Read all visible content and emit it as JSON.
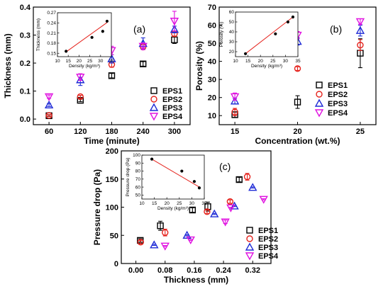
{
  "colors": {
    "EPS1": "#000000",
    "EPS2": "#e5221c",
    "EPS3": "#1f2bd6",
    "EPS4": "#e012e0",
    "fit": "#e5221c"
  },
  "series_meta": [
    {
      "name": "EPS1",
      "marker": "square"
    },
    {
      "name": "EPS2",
      "marker": "circle"
    },
    {
      "name": "EPS3",
      "marker": "triangle-up"
    },
    {
      "name": "EPS4",
      "marker": "triangle-down"
    }
  ],
  "chart_data": [
    {
      "panel_label": "(a)",
      "type": "scatter",
      "xlabel": "Time (minute)",
      "ylabel": "Thickness (mm)",
      "x_categories": [
        "60",
        "120",
        "180",
        "240",
        "300"
      ],
      "xlim": [
        30,
        330
      ],
      "ylim": [
        -0.02,
        0.4
      ],
      "yticks": [
        0.0,
        0.1,
        0.2,
        0.3,
        0.4
      ],
      "ytick_labels": [
        "0.0",
        "0.1",
        "0.2",
        "0.3",
        "0.4"
      ],
      "legend": [
        "EPS1",
        "EPS2",
        "EPS3",
        "EPS4"
      ],
      "legend_position": "bottom-right",
      "series": [
        {
          "name": "EPS1",
          "x": [
            60,
            120,
            180,
            240,
            300
          ],
          "y": [
            0.012,
            0.067,
            0.155,
            0.197,
            0.283
          ],
          "err": [
            0.003,
            0.005,
            0.008,
            0.008,
            0.013
          ]
        },
        {
          "name": "EPS2",
          "x": [
            60,
            120,
            180,
            240,
            300
          ],
          "y": [
            0.013,
            0.08,
            0.195,
            0.258,
            0.305
          ],
          "err": [
            0.003,
            0.005,
            0.01,
            0.01,
            0.01
          ]
        },
        {
          "name": "EPS3",
          "x": [
            60,
            120,
            180,
            240,
            300
          ],
          "y": [
            0.05,
            0.14,
            0.215,
            0.27,
            0.32
          ],
          "err": [
            0.005,
            0.02,
            0.015,
            0.02,
            0.012
          ]
        },
        {
          "name": "EPS4",
          "x": [
            60,
            120,
            180,
            240,
            300
          ],
          "y": [
            0.08,
            0.15,
            0.245,
            0.26,
            0.35
          ],
          "err": [
            0.006,
            0.012,
            0.015,
            0.012,
            0.035
          ]
        }
      ],
      "inset": {
        "xlabel": "Density (kg/m³)",
        "ylabel": "Thickness (mm)",
        "xlim": [
          10,
          35
        ],
        "ylim": [
          0.14,
          0.27
        ],
        "xticks": [
          10,
          15,
          20,
          25,
          30,
          35
        ],
        "yticks": [
          0.15,
          0.18,
          0.21,
          0.24,
          0.27
        ],
        "ytick_labels": [
          "0.15",
          "0.18",
          "0.21",
          "0.24",
          "0.27"
        ],
        "points": {
          "x": [
            14,
            26,
            31,
            33
          ],
          "y": [
            0.156,
            0.197,
            0.215,
            0.245
          ]
        },
        "fit": {
          "x": [
            14,
            33
          ],
          "y": [
            0.154,
            0.241
          ]
        }
      }
    },
    {
      "panel_label": "(b)",
      "type": "scatter",
      "xlabel": "Concentration (wt.%)",
      "ylabel": "Porosity (%)",
      "x_categories": [
        "15",
        "20",
        "25"
      ],
      "xlim": [
        13.75,
        26.25
      ],
      "ylim": [
        5,
        70
      ],
      "yticks": [
        10,
        20,
        30,
        40,
        50,
        60,
        70
      ],
      "ytick_labels": [
        "10",
        "20",
        "30",
        "40",
        "50",
        "60",
        "70"
      ],
      "legend": [
        "EPS1",
        "EPS2",
        "EPS3",
        "EPS4"
      ],
      "legend_position": "bottom-right",
      "series": [
        {
          "name": "EPS1",
          "x": [
            15,
            20,
            25
          ],
          "y": [
            10.5,
            17.5,
            44.5
          ],
          "err": [
            1.5,
            3.5,
            8
          ]
        },
        {
          "name": "EPS2",
          "x": [
            15,
            20,
            25
          ],
          "y": [
            12,
            36,
            49
          ],
          "err": [
            2,
            1,
            3
          ]
        },
        {
          "name": "EPS3",
          "x": [
            15,
            20,
            25
          ],
          "y": [
            18,
            51,
            57
          ],
          "err": [
            1.5,
            2,
            3
          ]
        },
        {
          "name": "EPS4",
          "x": [
            15,
            20,
            25
          ],
          "y": [
            20.5,
            54.5,
            62
          ],
          "err": [
            2,
            2,
            1.5
          ]
        }
      ],
      "inset": {
        "xlabel": "Density (kg/m³)",
        "ylabel": "Porosity (%)",
        "xlim": [
          10,
          35
        ],
        "ylim": [
          15,
          60
        ],
        "xticks": [
          10,
          15,
          20,
          25,
          30,
          35
        ],
        "yticks": [
          20,
          30,
          40,
          50,
          60
        ],
        "ytick_labels": [
          "20",
          "30",
          "40",
          "50",
          "60"
        ],
        "points": {
          "x": [
            14,
            26,
            31,
            33
          ],
          "y": [
            18,
            38,
            50,
            55
          ]
        },
        "fit": {
          "x": [
            14,
            33
          ],
          "y": [
            18,
            55
          ]
        }
      }
    },
    {
      "panel_label": "(c)",
      "type": "scatter",
      "xlabel": "Thickness (mm)",
      "ylabel": "Pressure drop (Pa)",
      "xlim": [
        -0.04,
        0.37
      ],
      "xticks": [
        0.0,
        0.08,
        0.16,
        0.24,
        0.32
      ],
      "xtick_labels": [
        "0.00",
        "0.08",
        "0.16",
        "0.24",
        "0.32"
      ],
      "ylim": [
        0,
        200
      ],
      "yticks": [
        0,
        50,
        100,
        150,
        200
      ],
      "ytick_labels": [
        "0",
        "50",
        "100",
        "150",
        "200"
      ],
      "legend": [
        "EPS1",
        "EPS2",
        "EPS3",
        "EPS4"
      ],
      "legend_position": "bottom-right",
      "series": [
        {
          "name": "EPS1",
          "x": [
            0.012,
            0.067,
            0.155,
            0.197,
            0.283
          ],
          "y": [
            41,
            67,
            95,
            101,
            149
          ],
          "err": [
            3,
            8,
            4,
            8,
            4
          ]
        },
        {
          "name": "EPS2",
          "x": [
            0.013,
            0.08,
            0.195,
            0.258,
            0.305
          ],
          "y": [
            38,
            55,
            92,
            110,
            154
          ],
          "err": [
            3,
            6,
            3,
            3,
            6
          ]
        },
        {
          "name": "EPS3",
          "x": [
            0.05,
            0.14,
            0.215,
            0.27,
            0.32
          ],
          "y": [
            33,
            50,
            88,
            102,
            135
          ],
          "err": [
            1,
            1,
            1,
            1,
            1
          ]
        },
        {
          "name": "EPS4",
          "x": [
            0.08,
            0.15,
            0.245,
            0.26,
            0.35
          ],
          "y": [
            31,
            42,
            74,
            99,
            114
          ],
          "err": [
            1,
            1,
            3,
            1,
            1
          ]
        }
      ],
      "inset": {
        "xlabel": "Density (kg/m³)",
        "ylabel": "Pressure drop (Pa)",
        "xlim": [
          10,
          35
        ],
        "ylim": [
          45,
          100
        ],
        "xticks": [
          10,
          15,
          20,
          25,
          30,
          35
        ],
        "yticks": [
          50,
          60,
          70,
          80,
          90,
          100
        ],
        "ytick_labels": [
          "50",
          "60",
          "70",
          "80",
          "90",
          "100"
        ],
        "points": {
          "x": [
            14,
            26,
            31,
            33
          ],
          "y": [
            95,
            80,
            67,
            59
          ]
        },
        "fit": {
          "x": [
            14,
            33
          ],
          "y": [
            95,
            60
          ]
        }
      }
    }
  ]
}
